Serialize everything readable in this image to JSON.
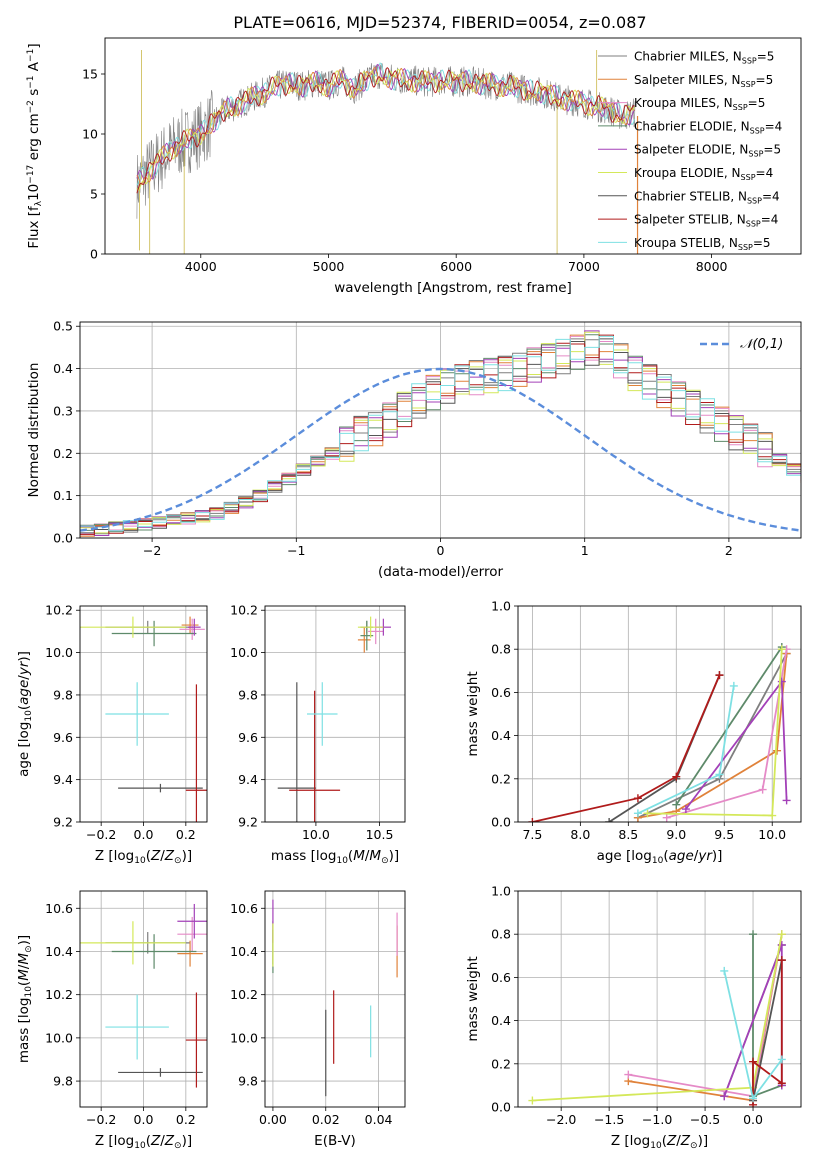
{
  "figure_title": "PLATE=0616, MJD=52374, FIBERID=0054, z=0.087",
  "colors": {
    "chabrier_miles": "#7f7f7f",
    "salpeter_miles": "#e0823a",
    "kroupa_miles": "#e58ac7",
    "chabrier_elodie": "#5e8a6a",
    "salpeter_elodie": "#a340b8",
    "kroupa_elodie": "#d4e85a",
    "chabrier_stelib": "#555555",
    "salpeter_stelib": "#b01b1b",
    "kroupa_stelib": "#7ee0e3",
    "normal_curve": "#5b8ddb"
  },
  "chart_data": [
    {
      "type": "line",
      "title": "",
      "xlabel": "wavelength [Angstrom, rest frame]",
      "ylabel": "Flux [f_λ 10^-17 erg cm^-2 s^-1 A^-1]",
      "xlim": [
        3250,
        8700
      ],
      "ylim": [
        0,
        18
      ],
      "xticks": [
        4000,
        5000,
        6000,
        7000,
        8000
      ],
      "yticks": [
        0,
        5,
        10,
        15
      ],
      "grid": false,
      "legend_position": "right",
      "series_names": [
        "Chabrier MILES, N_SSP=5",
        "Salpeter MILES, N_SSP=5",
        "Kroupa MILES, N_SSP=5",
        "Chabrier ELODIE, N_SSP=4",
        "Salpeter ELODIE, N_SSP=5",
        "Kroupa ELODIE, N_SSP=4",
        "Chabrier STELIB, N_SSP=4",
        "Salpeter STELIB, N_SSP=4",
        "Kroupa STELIB, N_SSP=5"
      ],
      "model_continuum": {
        "x": [
          3500,
          3560,
          3650,
          3700,
          3800,
          3900,
          4000,
          4100,
          4200,
          4300,
          4400,
          4500,
          4600,
          4700,
          4800,
          4900,
          5000,
          5100,
          5200,
          5300,
          5400,
          5500,
          5600,
          5700,
          5800,
          5900,
          6000,
          6100,
          6200,
          6300,
          6400,
          6500,
          6600,
          6700,
          6800,
          6900,
          7000,
          7100,
          7200,
          7300,
          7400
        ],
        "y": [
          5.8,
          6.5,
          7.5,
          8.0,
          9.0,
          9.5,
          10.0,
          11.0,
          12.0,
          12.5,
          13.0,
          13.5,
          14.0,
          14.2,
          14.0,
          14.3,
          14.0,
          14.5,
          13.8,
          14.5,
          15.0,
          14.6,
          14.5,
          14.4,
          14.3,
          14.5,
          14.3,
          14.4,
          14.2,
          14.1,
          14.0,
          13.8,
          13.6,
          13.4,
          13.0,
          12.8,
          12.6,
          12.3,
          12.0,
          11.5,
          11.8
        ]
      },
      "observed_noise_sigma": 1.3
    },
    {
      "type": "bar",
      "title": "",
      "xlabel": "(data-model)/error",
      "ylabel": "Normed distribution",
      "xlim": [
        -2.5,
        2.5
      ],
      "ylim": [
        0,
        0.51
      ],
      "xticks": [
        -2,
        -1,
        0,
        1,
        2
      ],
      "yticks": [
        0.0,
        0.1,
        0.2,
        0.3,
        0.4,
        0.5
      ],
      "grid": true,
      "legend_position": "top-right",
      "legend": "N(0,1)",
      "bin_edges_start": -2.5,
      "bin_width": 0.1,
      "histogram_values": [
        0.018,
        0.02,
        0.025,
        0.028,
        0.033,
        0.037,
        0.042,
        0.047,
        0.052,
        0.058,
        0.072,
        0.085,
        0.1,
        0.122,
        0.14,
        0.162,
        0.18,
        0.2,
        0.223,
        0.248,
        0.26,
        0.28,
        0.305,
        0.325,
        0.345,
        0.36,
        0.37,
        0.38,
        0.385,
        0.39,
        0.4,
        0.41,
        0.42,
        0.43,
        0.44,
        0.45,
        0.44,
        0.42,
        0.39,
        0.37,
        0.35,
        0.33,
        0.31,
        0.29,
        0.27,
        0.25,
        0.23,
        0.21,
        0.185,
        0.162,
        0.145,
        0.13,
        0.115,
        0.1,
        0.09,
        0.078,
        0.068,
        0.06,
        0.052,
        0.045,
        0.04,
        0.035,
        0.032,
        0.028,
        0.025,
        0.022,
        0.02,
        0.018,
        0.016,
        0.015
      ],
      "bin_variation": [
        0.012,
        -0.01,
        0.008,
        -0.014,
        0.01,
        0.006,
        -0.008,
        0.013,
        -0.006,
        0.0
      ]
    },
    {
      "type": "scatter",
      "title": "",
      "xlabel": "Z [log10(Z/Z☉)]",
      "ylabel": "age [log10(age/yr)]",
      "xlim": [
        -0.3,
        0.3
      ],
      "ylim": [
        9.2,
        10.22
      ],
      "xticks": [
        -0.2,
        0.0,
        0.2
      ],
      "yticks": [
        9.2,
        9.4,
        9.6,
        9.8,
        10.0,
        10.2
      ],
      "grid": true,
      "points": [
        {
          "model": "chabrier_miles",
          "x": 0.02,
          "xerr": 0.2,
          "y": 10.12,
          "yerr": 0.03
        },
        {
          "model": "salpeter_miles",
          "x": 0.22,
          "xerr": 0.04,
          "y": 10.13,
          "yerr": 0.04
        },
        {
          "model": "kroupa_miles",
          "x": 0.23,
          "xerr": 0.06,
          "y": 10.11,
          "yerr": 0.05
        },
        {
          "model": "chabrier_elodie",
          "x": 0.05,
          "xerr": 0.2,
          "y": 10.09,
          "yerr": 0.06
        },
        {
          "model": "salpeter_elodie",
          "x": 0.24,
          "xerr": 0.03,
          "y": 10.12,
          "yerr": 0.04
        },
        {
          "model": "kroupa_elodie",
          "x": -0.05,
          "xerr": 0.25,
          "y": 10.12,
          "yerr": 0.05
        },
        {
          "model": "chabrier_stelib",
          "x": 0.08,
          "xerr": 0.2,
          "y": 9.36,
          "yerr": 0.02
        },
        {
          "model": "salpeter_stelib",
          "x": 0.25,
          "xerr": 0.05,
          "y": 9.35,
          "yerr": 0.5
        },
        {
          "model": "kroupa_stelib",
          "x": -0.03,
          "xerr": 0.15,
          "y": 9.71,
          "yerr": 0.15
        }
      ]
    },
    {
      "type": "scatter",
      "title": "",
      "xlabel": "mass [log10(M/M☉)]",
      "ylabel": "",
      "xlim": [
        9.6,
        10.7
      ],
      "ylim": [
        9.2,
        10.22
      ],
      "xticks": [
        10.0,
        10.5
      ],
      "yticks": [
        9.2,
        9.4,
        9.6,
        9.8,
        10.0,
        10.2
      ],
      "grid": true,
      "points": [
        {
          "model": "chabrier_miles",
          "x": 10.4,
          "xerr": 0.05,
          "y": 10.12,
          "yerr": 0.03
        },
        {
          "model": "salpeter_miles",
          "x": 10.38,
          "xerr": 0.05,
          "y": 10.06,
          "yerr": 0.06
        },
        {
          "model": "kroupa_miles",
          "x": 10.47,
          "xerr": 0.06,
          "y": 10.1,
          "yerr": 0.06
        },
        {
          "model": "chabrier_elodie",
          "x": 10.4,
          "xerr": 0.05,
          "y": 10.08,
          "yerr": 0.07
        },
        {
          "model": "salpeter_elodie",
          "x": 10.53,
          "xerr": 0.06,
          "y": 10.12,
          "yerr": 0.04
        },
        {
          "model": "kroupa_elodie",
          "x": 10.43,
          "xerr": 0.1,
          "y": 10.12,
          "yerr": 0.05
        },
        {
          "model": "chabrier_stelib",
          "x": 9.85,
          "xerr": 0.15,
          "y": 9.36,
          "yerr": 0.5
        },
        {
          "model": "salpeter_stelib",
          "x": 9.99,
          "xerr": 0.2,
          "y": 9.35,
          "yerr": 0.47
        },
        {
          "model": "kroupa_stelib",
          "x": 10.05,
          "xerr": 0.12,
          "y": 9.71,
          "yerr": 0.15
        }
      ]
    },
    {
      "type": "line",
      "title": "",
      "xlabel": "age [log10(age/yr)]",
      "ylabel": "mass weight",
      "xlim": [
        7.35,
        10.3
      ],
      "ylim": [
        0,
        1.0
      ],
      "xticks": [
        7.5,
        8.0,
        8.5,
        9.0,
        9.5,
        10.0
      ],
      "yticks": [
        0.0,
        0.2,
        0.4,
        0.6,
        0.8,
        1.0
      ],
      "grid": true,
      "series": [
        {
          "model": "chabrier_miles",
          "x": [
            8.6,
            9.45,
            10.15
          ],
          "y": [
            0.02,
            0.2,
            0.78
          ]
        },
        {
          "model": "salpeter_miles",
          "x": [
            8.6,
            9.0,
            10.05,
            10.15
          ],
          "y": [
            0.02,
            0.05,
            0.33,
            0.78
          ]
        },
        {
          "model": "kroupa_miles",
          "x": [
            8.9,
            9.9,
            10.15
          ],
          "y": [
            0.02,
            0.15,
            0.8
          ]
        },
        {
          "model": "chabrier_elodie",
          "x": [
            9.0,
            10.1
          ],
          "y": [
            0.08,
            0.81
          ]
        },
        {
          "model": "salpeter_elodie",
          "x": [
            9.1,
            10.1,
            10.15
          ],
          "y": [
            0.06,
            0.65,
            0.1
          ]
        },
        {
          "model": "kroupa_elodie",
          "x": [
            8.7,
            10.0,
            10.1
          ],
          "y": [
            0.04,
            0.03,
            0.8
          ]
        },
        {
          "model": "chabrier_stelib",
          "x": [
            8.3,
            9.0,
            9.45
          ],
          "y": [
            0.0,
            0.2,
            0.68
          ]
        },
        {
          "model": "salpeter_stelib",
          "x": [
            7.5,
            8.6,
            9.0,
            9.45
          ],
          "y": [
            0.0,
            0.11,
            0.21,
            0.68
          ]
        },
        {
          "model": "kroupa_stelib",
          "x": [
            8.6,
            9.45,
            9.6
          ],
          "y": [
            0.04,
            0.22,
            0.63
          ]
        }
      ]
    },
    {
      "type": "scatter",
      "title": "",
      "xlabel": "Z [log10(Z/Z☉)]",
      "ylabel": "mass [log10(M/M☉)]",
      "xlim": [
        -0.3,
        0.3
      ],
      "ylim": [
        9.68,
        10.68
      ],
      "xticks": [
        -0.2,
        0.0,
        0.2
      ],
      "yticks": [
        9.8,
        10.0,
        10.2,
        10.4,
        10.6
      ],
      "grid": true,
      "points": [
        {
          "model": "chabrier_miles",
          "x": 0.02,
          "xerr": 0.2,
          "y": 10.44,
          "yerr": 0.05
        },
        {
          "model": "salpeter_miles",
          "x": 0.22,
          "xerr": 0.06,
          "y": 10.39,
          "yerr": 0.06
        },
        {
          "model": "kroupa_miles",
          "x": 0.23,
          "xerr": 0.07,
          "y": 10.48,
          "yerr": 0.08
        },
        {
          "model": "chabrier_elodie",
          "x": 0.05,
          "xerr": 0.2,
          "y": 10.4,
          "yerr": 0.08
        },
        {
          "model": "salpeter_elodie",
          "x": 0.24,
          "xerr": 0.08,
          "y": 10.54,
          "yerr": 0.08
        },
        {
          "model": "kroupa_elodie",
          "x": -0.05,
          "xerr": 0.25,
          "y": 10.44,
          "yerr": 0.1
        },
        {
          "model": "chabrier_stelib",
          "x": 0.08,
          "xerr": 0.2,
          "y": 9.84,
          "yerr": 0.02
        },
        {
          "model": "salpeter_stelib",
          "x": 0.25,
          "xerr": 0.05,
          "y": 9.99,
          "yerr": 0.22
        },
        {
          "model": "kroupa_stelib",
          "x": -0.03,
          "xerr": 0.15,
          "y": 10.05,
          "yerr": 0.15
        }
      ]
    },
    {
      "type": "scatter",
      "title": "",
      "xlabel": "E(B-V)",
      "ylabel": "",
      "xlim": [
        -0.003,
        0.05
      ],
      "ylim": [
        9.68,
        10.68
      ],
      "xticks": [
        0.0,
        0.02,
        0.04
      ],
      "yticks": [
        9.8,
        10.0,
        10.2,
        10.4,
        10.6
      ],
      "grid": true,
      "points": [
        {
          "model": "chabrier_miles",
          "x": 0.0,
          "y": 10.44,
          "yerr": 0.1
        },
        {
          "model": "salpeter_miles",
          "x": 0.047,
          "y": 10.4,
          "yerr": 0.12
        },
        {
          "model": "kroupa_miles",
          "x": 0.047,
          "y": 10.48,
          "yerr": 0.1
        },
        {
          "model": "chabrier_elodie",
          "x": 0.0,
          "y": 10.4,
          "yerr": 0.1
        },
        {
          "model": "salpeter_elodie",
          "x": 0.0,
          "y": 10.54,
          "yerr": 0.1
        },
        {
          "model": "kroupa_elodie",
          "x": 0.0,
          "y": 10.43,
          "yerr": 0.1
        },
        {
          "model": "chabrier_stelib",
          "x": 0.02,
          "y": 9.93,
          "yerr": 0.2
        },
        {
          "model": "salpeter_stelib",
          "x": 0.023,
          "y": 10.05,
          "yerr": 0.17
        },
        {
          "model": "kroupa_stelib",
          "x": 0.037,
          "y": 10.03,
          "yerr": 0.12
        }
      ]
    },
    {
      "type": "line",
      "title": "",
      "xlabel": "Z [log10(Z/Z☉)]",
      "ylabel": "mass weight",
      "xlim": [
        -2.45,
        0.5
      ],
      "ylim": [
        0,
        1.0
      ],
      "xticks": [
        -2.0,
        -1.5,
        -1.0,
        -0.5,
        0.0
      ],
      "yticks": [
        0.0,
        0.2,
        0.4,
        0.6,
        0.8,
        1.0
      ],
      "grid": true,
      "series": [
        {
          "model": "chabrier_miles",
          "x": [
            -0.3,
            0.3
          ],
          "y": [
            0.05,
            0.75
          ]
        },
        {
          "model": "salpeter_miles",
          "x": [
            -1.3,
            0.0,
            0.3
          ],
          "y": [
            0.12,
            0.03,
            0.8
          ]
        },
        {
          "model": "kroupa_miles",
          "x": [
            -1.3,
            0.0,
            0.3
          ],
          "y": [
            0.15,
            0.05,
            0.8
          ]
        },
        {
          "model": "chabrier_elodie",
          "x": [
            0.0,
            0.0,
            0.3
          ],
          "y": [
            0.8,
            0.05,
            0.1
          ]
        },
        {
          "model": "salpeter_elodie",
          "x": [
            -0.3,
            0.3,
            0.3
          ],
          "y": [
            0.05,
            0.75,
            0.1
          ]
        },
        {
          "model": "kroupa_elodie",
          "x": [
            -2.3,
            0.0,
            0.3
          ],
          "y": [
            0.03,
            0.09,
            0.8
          ]
        },
        {
          "model": "chabrier_stelib",
          "x": [
            0.0,
            0.3
          ],
          "y": [
            0.03,
            0.68
          ]
        },
        {
          "model": "salpeter_stelib",
          "x": [
            0.0,
            0.0,
            0.3,
            0.3
          ],
          "y": [
            0.01,
            0.21,
            0.11,
            0.68
          ]
        },
        {
          "model": "kroupa_stelib",
          "x": [
            -0.3,
            0.0,
            0.3
          ],
          "y": [
            0.63,
            0.04,
            0.22
          ]
        }
      ]
    }
  ]
}
